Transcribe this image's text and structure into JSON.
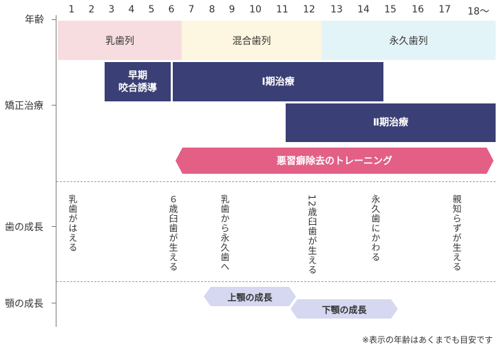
{
  "header": {
    "age_label": "年齢",
    "ages": [
      "1",
      "2",
      "3",
      "4",
      "5",
      "6",
      "7",
      "8",
      "9",
      "10",
      "11",
      "12",
      "13",
      "14",
      "15",
      "16",
      "17",
      "18〜"
    ]
  },
  "rows": {
    "ortho": "矯正治療",
    "teeth": "歯の成長",
    "jaw": "顎の成長"
  },
  "stages": {
    "primary": "乳歯列",
    "mixed": "混合歯列",
    "permanent": "永久歯列"
  },
  "treatments": {
    "early_line1": "早期",
    "early_line2": "咬合誘導",
    "phase1": "Ⅰ期治療",
    "phase2": "Ⅱ期治療",
    "habit": "悪習癖除去のトレーニング"
  },
  "teeth_events": [
    "乳歯がはえる",
    "６歳臼歯が生える",
    "乳歯から永久歯へ",
    "12歳臼歯が生える",
    "永久歯にかわる",
    "親知らずが生える"
  ],
  "jaw_growth": {
    "upper": "上顎の成長",
    "lower": "下顎の成長"
  },
  "note": "※表示の年齢はあくまでも目安です",
  "colors": {
    "primary_bg": "#f7dde0",
    "mixed_bg": "#fdf6e0",
    "permanent_bg": "#e3f4f8",
    "navy": "#3a3f75",
    "pink": "#e35f86",
    "lavender": "#d5d8f0"
  }
}
